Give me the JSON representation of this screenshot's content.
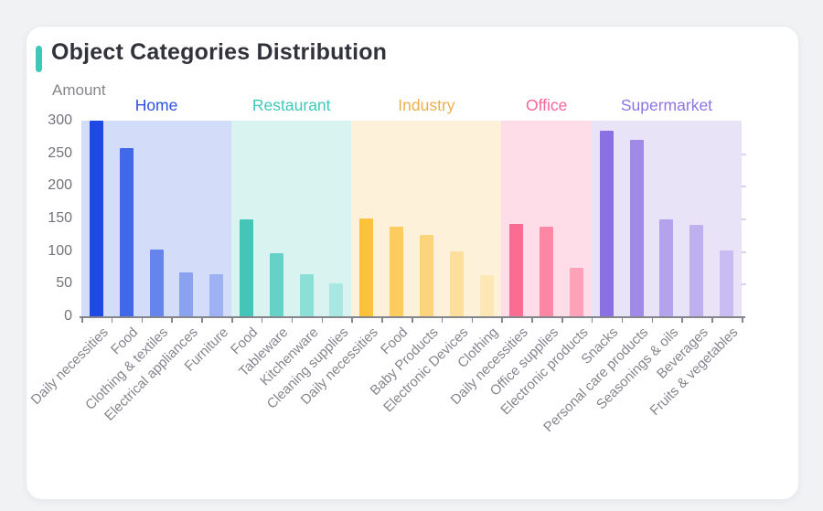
{
  "page": {
    "background": "#f0f2f4",
    "card_background": "#ffffff"
  },
  "header": {
    "title": "Object Categories Distribution",
    "accent_color": "#3fc8ba"
  },
  "axis": {
    "line_color": "#85868c",
    "tick_label_color": "#72727a",
    "x_label_color": "#85858d"
  },
  "chart_data": {
    "type": "bar",
    "title": "Object Categories Distribution",
    "xlabel": "",
    "ylabel": "Amount",
    "ylim": [
      0,
      300
    ],
    "yticks": [
      0,
      50,
      100,
      150,
      200,
      250,
      300
    ],
    "grid": false,
    "legend_position": "none",
    "groups": [
      {
        "name": "Home",
        "label_color": "#2d51e0",
        "band_color": "#d3dcf8",
        "categories": [
          "Daily necessities",
          "Food",
          "Clothing & textiles",
          "Electrical appliances",
          "Furniture"
        ],
        "values": [
          300,
          258,
          102,
          68,
          64
        ],
        "bar_colors": [
          "#1f49e2",
          "#4068e8",
          "#6584ec",
          "#8aa2f0",
          "#9db1f3"
        ]
      },
      {
        "name": "Restaurant",
        "label_color": "#3fc9b8",
        "band_color": "#d9f3f0",
        "categories": [
          "Food",
          "Tableware",
          "Kitchenware",
          "Cleaning supplies"
        ],
        "values": [
          148,
          97,
          64,
          50
        ],
        "bar_colors": [
          "#44c5b8",
          "#66d1c7",
          "#8cdfd7",
          "#a9e8e2"
        ]
      },
      {
        "name": "Industry",
        "label_color": "#eab04e",
        "band_color": "#fdf2d9",
        "categories": [
          "Daily necessities",
          "Food",
          "Baby Products",
          "Electronic Devices",
          "Clothing"
        ],
        "values": [
          150,
          138,
          125,
          99,
          63
        ],
        "bar_colors": [
          "#fdc23d",
          "#fdcc5f",
          "#fdd47c",
          "#fddf9d",
          "#fde7b4"
        ]
      },
      {
        "name": "Office",
        "label_color": "#f4679a",
        "band_color": "#fedde8",
        "categories": [
          "Daily necessities",
          "Office supplies",
          "Electronic products"
        ],
        "values": [
          142,
          138,
          74
        ],
        "bar_colors": [
          "#fa6c92",
          "#fb87a4",
          "#fda2b9"
        ]
      },
      {
        "name": "Supermarket",
        "label_color": "#8d75e3",
        "band_color": "#e8e3f7",
        "categories": [
          "Snacks",
          "Personal care products",
          "Seasonings & oils",
          "Beverages",
          "Fruits & vegetables"
        ],
        "values": [
          284,
          271,
          148,
          140,
          101
        ],
        "bar_colors": [
          "#8a70e0",
          "#a189e7",
          "#b4a3ec",
          "#beafef",
          "#c9bcf2"
        ]
      }
    ]
  }
}
